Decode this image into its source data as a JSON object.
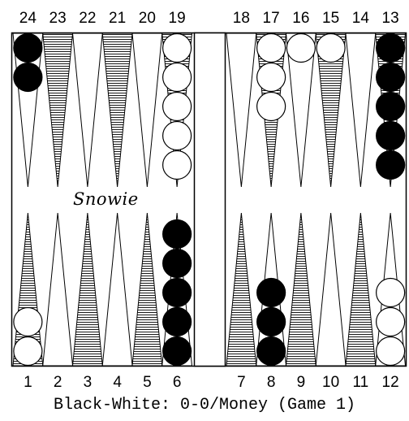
{
  "board": {
    "top_points": [
      "24",
      "23",
      "22",
      "21",
      "20",
      "19",
      "18",
      "17",
      "16",
      "15",
      "14",
      "13"
    ],
    "bottom_points": [
      "1",
      "2",
      "3",
      "4",
      "5",
      "6",
      "7",
      "8",
      "9",
      "10",
      "11",
      "12"
    ],
    "logo_text": "Snowie",
    "checkers": [
      {
        "point": 24,
        "color": "black",
        "count": 2
      },
      {
        "point": 19,
        "color": "white",
        "count": 5
      },
      {
        "point": 17,
        "color": "white",
        "count": 3
      },
      {
        "point": 16,
        "color": "white",
        "count": 1
      },
      {
        "point": 15,
        "color": "white",
        "count": 1
      },
      {
        "point": 13,
        "color": "black",
        "count": 5
      },
      {
        "point": 1,
        "color": "white",
        "count": 2
      },
      {
        "point": 6,
        "color": "black",
        "count": 5
      },
      {
        "point": 8,
        "color": "black",
        "count": 3
      },
      {
        "point": 12,
        "color": "white",
        "count": 3
      }
    ],
    "colors": {
      "black_checker": "#000000",
      "white_checker": "#ffffff",
      "line": "#000000"
    }
  },
  "status": {
    "text": "Black-White: 0-0/Money (Game 1)"
  }
}
